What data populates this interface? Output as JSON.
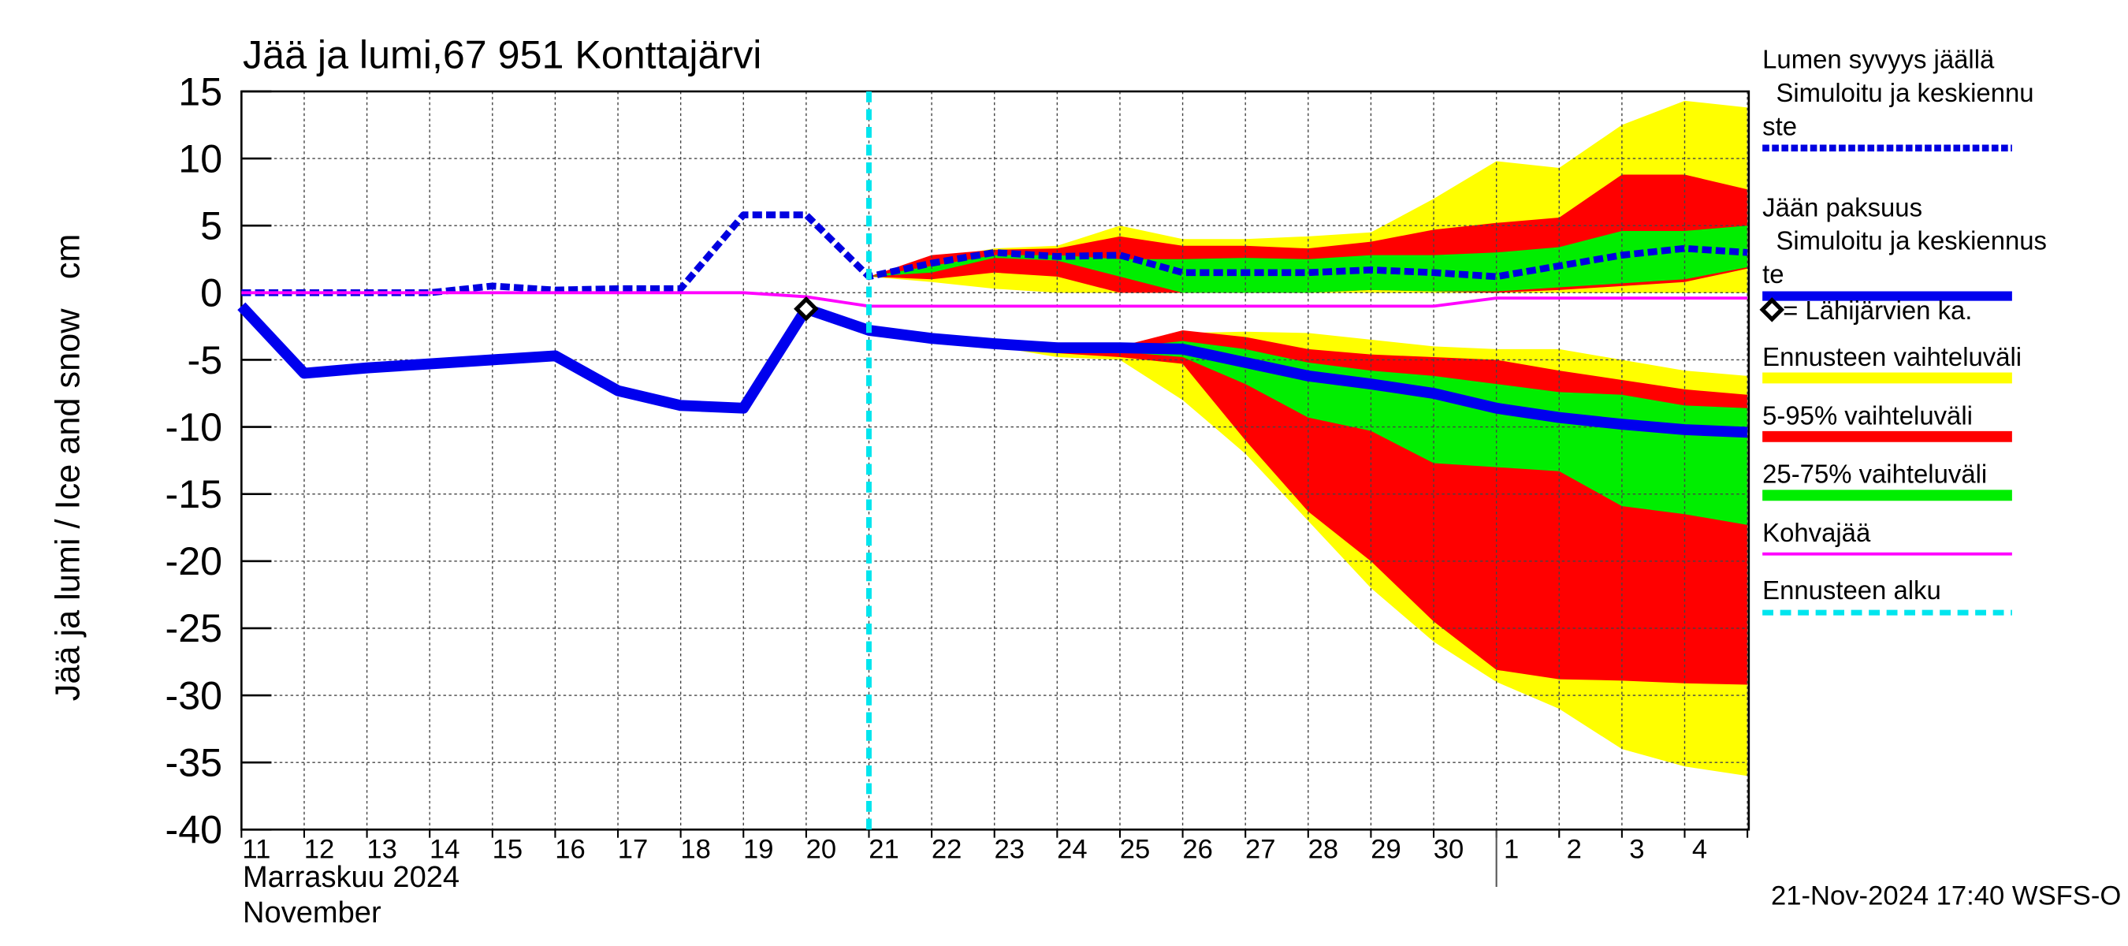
{
  "chart_data": {
    "type": "line",
    "title": "Jää ja lumi,67 951 Konttajärvi",
    "ylabel": "Jää ja lumi / Ice and snow",
    "yunit": "cm",
    "categories": [
      "11",
      "12",
      "13",
      "14",
      "15",
      "16",
      "17",
      "18",
      "19",
      "20",
      "21",
      "22",
      "23",
      "24",
      "25",
      "26",
      "27",
      "28",
      "29",
      "30",
      "1",
      "2",
      "3",
      "4",
      null
    ],
    "month_label": "Marraskuu 2024",
    "month_label_en": "November",
    "month_break": "1",
    "timestamp": "21-Nov-2024 17:40 WSFS-O",
    "ylim": [
      -40,
      15
    ],
    "yticks": [
      15,
      10,
      5,
      0,
      -5,
      -10,
      -15,
      -20,
      -25,
      -30,
      -35,
      -40
    ],
    "grid": true,
    "forecast_start": "21",
    "forecast_color": "#00e5ee",
    "forecast_name": "Ennusteen alku",
    "bands": [
      {
        "name": "Ennusteen vaihteluväli",
        "color": "#ffff00",
        "snow_upper": [
          null,
          null,
          null,
          null,
          null,
          null,
          null,
          null,
          null,
          null,
          1.2,
          2.5,
          3.3,
          3.5,
          5,
          4,
          4,
          4.2,
          4.5,
          7,
          9.8,
          9.3,
          12.5,
          14.3,
          13.8
        ],
        "snow_lower": [
          null,
          null,
          null,
          null,
          null,
          null,
          null,
          null,
          null,
          null,
          1.2,
          0.8,
          0.3,
          0,
          0,
          0,
          0,
          0,
          0,
          0,
          0,
          0,
          0,
          0,
          0
        ],
        "ice_upper": [
          null,
          null,
          null,
          null,
          null,
          null,
          null,
          null,
          null,
          null,
          -2.8,
          -3.4,
          -3.8,
          -4.1,
          -4.1,
          -3,
          -2.9,
          -3,
          -3.5,
          -4,
          -4.2,
          -4.2,
          -5,
          -5.8,
          -6.2
        ],
        "ice_lower": [
          null,
          null,
          null,
          null,
          null,
          null,
          null,
          null,
          null,
          null,
          -2.8,
          -3.4,
          -4,
          -4.8,
          -5,
          -8,
          -12,
          -17,
          -22,
          -26,
          -29,
          -31,
          -34,
          -35.3,
          -36
        ]
      },
      {
        "name": "5-95% vaihteluväli",
        "color": "#ff0000",
        "snow_upper": [
          null,
          null,
          null,
          null,
          null,
          null,
          null,
          null,
          null,
          null,
          1.2,
          2.8,
          3.2,
          3.3,
          4.2,
          3.5,
          3.5,
          3.3,
          3.8,
          4.7,
          5.2,
          5.6,
          8.8,
          8.8,
          7.7
        ],
        "snow_lower": [
          null,
          null,
          null,
          null,
          null,
          null,
          null,
          null,
          null,
          null,
          1.2,
          1,
          1.5,
          1.2,
          0,
          0,
          0,
          0,
          0.2,
          0.1,
          0,
          0.2,
          0.5,
          0.8,
          1.8
        ],
        "ice_upper": [
          null,
          null,
          null,
          null,
          null,
          null,
          null,
          null,
          null,
          null,
          -2.8,
          -3.4,
          -3.8,
          -4.1,
          -4,
          -2.8,
          -3.3,
          -4.2,
          -4.6,
          -4.8,
          -5,
          -5.8,
          -6.5,
          -7.2,
          -7.6
        ],
        "ice_lower": [
          null,
          null,
          null,
          null,
          null,
          null,
          null,
          null,
          null,
          null,
          -2.8,
          -3.4,
          -3.9,
          -4.5,
          -4.8,
          -5.3,
          -11,
          -16.3,
          -20,
          -24.5,
          -28.1,
          -28.8,
          -28.9,
          -29.1,
          -29.2
        ]
      },
      {
        "name": "25-75% vaihteluväli",
        "color": "#00ee00",
        "snow_upper": [
          null,
          null,
          null,
          null,
          null,
          null,
          null,
          null,
          null,
          null,
          1.2,
          2,
          2.8,
          2.8,
          2.5,
          2.5,
          2.6,
          2.5,
          2.8,
          2.8,
          3,
          3.4,
          4.6,
          4.6,
          5
        ],
        "snow_lower": [
          null,
          null,
          null,
          null,
          null,
          null,
          null,
          null,
          null,
          null,
          1.2,
          1.5,
          2.6,
          2.4,
          1.2,
          0,
          0,
          0,
          0.2,
          0.1,
          0.1,
          0.4,
          0.7,
          1,
          1.9
        ],
        "ice_upper": [
          null,
          null,
          null,
          null,
          null,
          null,
          null,
          null,
          null,
          null,
          -2.8,
          -3.4,
          -3.8,
          -4.1,
          -4.1,
          -3.6,
          -4.2,
          -5.2,
          -5.8,
          -6.2,
          -6.8,
          -7.4,
          -7.6,
          -8.4,
          -8.6
        ],
        "ice_lower": [
          null,
          null,
          null,
          null,
          null,
          null,
          null,
          null,
          null,
          null,
          -2.8,
          -3.4,
          -3.8,
          -4.2,
          -4.4,
          -4.8,
          -6.8,
          -9.3,
          -10.3,
          -12.7,
          -13,
          -13.3,
          -15.9,
          -16.5,
          -17.3
        ]
      }
    ],
    "series": [
      {
        "name_lines": [
          "Lumen syvyys jäällä",
          "Simuloitu ja keskiennu",
          "ste"
        ],
        "color": "#0000e0",
        "dashed": true,
        "values": [
          0,
          0,
          0,
          0,
          0.5,
          0.2,
          0.3,
          0.3,
          5.8,
          5.8,
          1.2,
          2.2,
          3,
          2.7,
          2.8,
          1.5,
          1.5,
          1.5,
          1.7,
          1.5,
          1.2,
          2,
          2.8,
          3.3,
          3
        ]
      },
      {
        "name_lines": [
          "Jään paksuus",
          "Simuloitu ja keskiennus",
          "te"
        ],
        "color": "#0000ee",
        "dashed": false,
        "values": [
          -1,
          -6,
          -5.6,
          -5.3,
          -5,
          -4.7,
          -7.3,
          -8.4,
          -8.6,
          -1.2,
          -2.8,
          -3.4,
          -3.8,
          -4.1,
          -4.1,
          -4.2,
          -5.2,
          -6.2,
          -6.8,
          -7.5,
          -8.6,
          -9.3,
          -9.8,
          -10.2,
          -10.4
        ]
      },
      {
        "name_lines": [
          "Kohvajää"
        ],
        "color": "#ff00ff",
        "dashed": false,
        "values": [
          0,
          0,
          0,
          0,
          0,
          0,
          0,
          0,
          0,
          -0.3,
          -1,
          -1,
          -1,
          -1,
          -1,
          -1,
          -1,
          -1,
          -1,
          -1,
          -0.4,
          -0.4,
          -0.4,
          -0.4,
          -0.4
        ]
      }
    ],
    "nearby_lakes": {
      "name": "= Lähijärvien ka.",
      "values": [
        null,
        null,
        null,
        null,
        null,
        null,
        null,
        null,
        null,
        -1.2,
        null,
        null,
        null,
        null,
        null,
        null,
        null,
        null,
        null,
        null,
        null,
        null,
        null,
        null,
        null
      ]
    }
  }
}
